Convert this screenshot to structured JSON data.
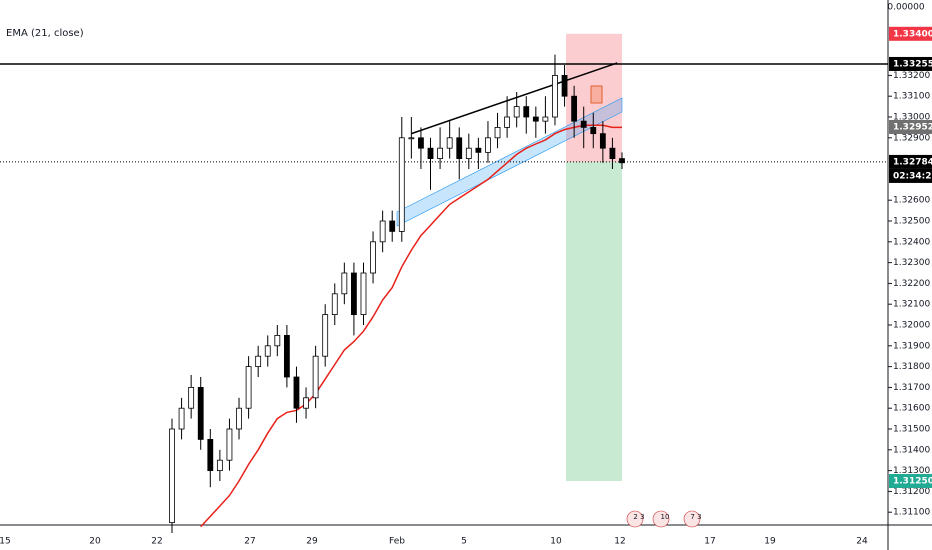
{
  "chart_data": {
    "type": "candlestick",
    "top_label": "0.00000",
    "ylim": [
      1.310385,
      1.335625
    ],
    "yticks": [
      {
        "value": 1.311,
        "label": "1.31100"
      },
      {
        "value": 1.312,
        "label": "1.31200"
      },
      {
        "value": 1.313,
        "label": "1.31300"
      },
      {
        "value": 1.314,
        "label": "1.31400"
      },
      {
        "value": 1.315,
        "label": "1.31500"
      },
      {
        "value": 1.316,
        "label": "1.31600"
      },
      {
        "value": 1.317,
        "label": "1.31700"
      },
      {
        "value": 1.318,
        "label": "1.31800"
      },
      {
        "value": 1.319,
        "label": "1.31900"
      },
      {
        "value": 1.32,
        "label": "1.32000"
      },
      {
        "value": 1.321,
        "label": "1.32100"
      },
      {
        "value": 1.322,
        "label": "1.32200"
      },
      {
        "value": 1.323,
        "label": "1.32300"
      },
      {
        "value": 1.324,
        "label": "1.32400"
      },
      {
        "value": 1.325,
        "label": "1.32500"
      },
      {
        "value": 1.326,
        "label": "1.32600"
      },
      {
        "value": 1.329,
        "label": "1.32900"
      },
      {
        "value": 1.33,
        "label": "1.33000"
      },
      {
        "value": 1.331,
        "label": "1.33100"
      },
      {
        "value": 1.332,
        "label": "1.33200"
      }
    ],
    "x_labels": [
      "15",
      "20",
      "22",
      "27",
      "29",
      "Feb",
      "5",
      "10",
      "12",
      "17",
      "19",
      "24"
    ],
    "grid": false,
    "up_color": "#ffffff",
    "down_color": "#000000",
    "candles": {
      "open": [
        1.3105,
        1.315,
        1.316,
        1.317,
        1.3145,
        1.313,
        1.3135,
        1.315,
        1.316,
        1.318,
        1.3185,
        1.319,
        1.3195,
        1.3175,
        1.316,
        1.3165,
        1.3185,
        1.3205,
        1.3215,
        1.3225,
        1.3205,
        1.3225,
        1.324,
        1.325,
        1.3245,
        1.329,
        1.329,
        1.3285,
        1.328,
        1.3285,
        1.329,
        1.328,
        1.3285,
        1.3283,
        1.329,
        1.3295,
        1.33,
        1.3305,
        1.33,
        1.3298,
        1.33,
        1.332,
        1.331,
        1.3298,
        1.3295,
        1.3292,
        1.3285,
        1.328
      ],
      "high": [
        1.3155,
        1.3165,
        1.3176,
        1.3175,
        1.315,
        1.314,
        1.3155,
        1.3165,
        1.3185,
        1.319,
        1.3195,
        1.32,
        1.32,
        1.318,
        1.317,
        1.319,
        1.321,
        1.322,
        1.323,
        1.323,
        1.323,
        1.3245,
        1.3255,
        1.3255,
        1.33,
        1.33,
        1.3295,
        1.329,
        1.3295,
        1.3298,
        1.3295,
        1.3292,
        1.329,
        1.3298,
        1.3302,
        1.331,
        1.3312,
        1.331,
        1.3305,
        1.331,
        1.333,
        1.3325,
        1.3315,
        1.3305,
        1.3302,
        1.3298,
        1.329,
        1.3283
      ],
      "low": [
        1.31,
        1.3145,
        1.3155,
        1.314,
        1.3122,
        1.3125,
        1.313,
        1.3145,
        1.3155,
        1.3175,
        1.318,
        1.3185,
        1.317,
        1.3153,
        1.3155,
        1.316,
        1.318,
        1.32,
        1.321,
        1.3195,
        1.32,
        1.322,
        1.3235,
        1.324,
        1.324,
        1.328,
        1.3275,
        1.3265,
        1.3275,
        1.328,
        1.327,
        1.3275,
        1.3275,
        1.3278,
        1.3285,
        1.329,
        1.3295,
        1.3292,
        1.329,
        1.3292,
        1.3296,
        1.3305,
        1.329,
        1.3285,
        1.3285,
        1.3278,
        1.3275,
        1.3275
      ],
      "close": [
        1.315,
        1.316,
        1.317,
        1.3145,
        1.313,
        1.3135,
        1.315,
        1.316,
        1.318,
        1.3185,
        1.319,
        1.3195,
        1.3175,
        1.316,
        1.3165,
        1.3185,
        1.3205,
        1.3215,
        1.3225,
        1.3205,
        1.3225,
        1.324,
        1.325,
        1.3245,
        1.329,
        1.329,
        1.3285,
        1.328,
        1.3285,
        1.329,
        1.328,
        1.3285,
        1.3283,
        1.329,
        1.3295,
        1.33,
        1.3305,
        1.33,
        1.3298,
        1.33,
        1.332,
        1.331,
        1.3298,
        1.3295,
        1.3292,
        1.3285,
        1.328,
        1.3278
      ]
    },
    "ema": {
      "name": "EMA (21, close)",
      "color": "#e8201a",
      "values": [
        null,
        null,
        null,
        1.3103,
        1.3108,
        1.3113,
        1.3118,
        1.3125,
        1.3133,
        1.314,
        1.3148,
        1.3155,
        1.3158,
        1.3159,
        1.3162,
        1.3167,
        1.3174,
        1.3181,
        1.3188,
        1.3192,
        1.3197,
        1.3204,
        1.3212,
        1.3218,
        1.3228,
        1.3236,
        1.3243,
        1.3248,
        1.3253,
        1.3258,
        1.3261,
        1.3264,
        1.3267,
        1.327,
        1.3274,
        1.3278,
        1.3282,
        1.3285,
        1.3287,
        1.3289,
        1.3292,
        1.3294,
        1.3295,
        1.3296,
        1.3296,
        1.3296,
        1.3295,
        1.3295
      ]
    },
    "ema_last": {
      "value": 1.32952,
      "label": "1.32952",
      "color": "#707070"
    },
    "hline": {
      "value": 1.33255,
      "label": "1.33255",
      "color": "#000000"
    },
    "last_price": {
      "value": 1.32784,
      "label": "1.32784",
      "countdown": "02:34:29",
      "color": "#000000"
    },
    "position": {
      "stop": {
        "value": 1.334,
        "label": "1.33400",
        "color": "#f23645"
      },
      "target": {
        "value": 1.3125,
        "label": "1.31250",
        "color": "#22ab94"
      }
    },
    "trendline": {
      "x": [
        25,
        46.5
      ],
      "y": [
        1.3292,
        1.3326
      ]
    },
    "events": [
      "2 3",
      "10",
      "7 3"
    ]
  }
}
